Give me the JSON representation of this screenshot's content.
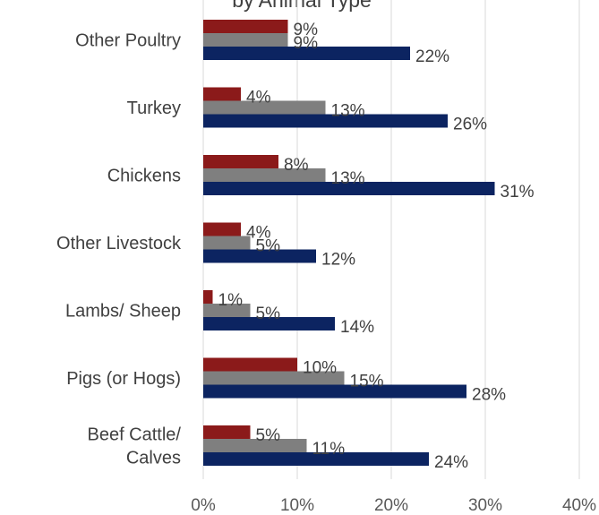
{
  "chart_data": {
    "type": "bar",
    "orientation": "horizontal",
    "title": "by Animal Type",
    "categories": [
      [
        "Other Poultry"
      ],
      [
        "Turkey"
      ],
      [
        "Chickens"
      ],
      [
        "Other Livestock"
      ],
      [
        "Lambs/ Sheep"
      ],
      [
        "Pigs (or Hogs)"
      ],
      [
        "Beef Cattle/",
        "Calves"
      ]
    ],
    "series": [
      {
        "color": "#8b1a1a",
        "values": [
          9,
          4,
          8,
          4,
          1,
          10,
          5
        ],
        "labels": [
          "9%",
          "4%",
          "8%",
          "4%",
          "1%",
          "10%",
          "5%"
        ]
      },
      {
        "color": "#7f7f7f",
        "values": [
          9,
          13,
          13,
          5,
          5,
          15,
          11
        ],
        "labels": [
          "9%",
          "13%",
          "13%",
          "5%",
          "5%",
          "15%",
          "11%"
        ]
      },
      {
        "color": "#0c2461",
        "values": [
          22,
          26,
          31,
          12,
          14,
          28,
          24
        ],
        "labels": [
          "22%",
          "26%",
          "31%",
          "12%",
          "14%",
          "28%",
          "24%"
        ]
      }
    ],
    "xlim": [
      0,
      40
    ],
    "x_ticks": [
      0,
      10,
      20,
      30,
      40
    ],
    "x_tick_labels": [
      "0%",
      "10%",
      "20%",
      "30%",
      "40%"
    ],
    "grid": true,
    "legend": "none"
  }
}
